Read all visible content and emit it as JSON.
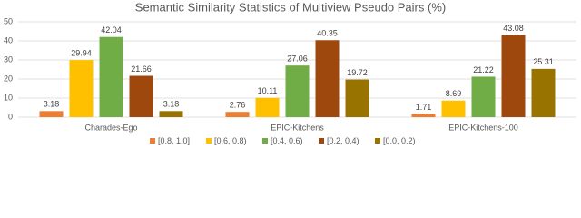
{
  "chart_data": {
    "type": "bar",
    "title": "Semantic Similarity Statistics of Multiview Pseudo Pairs (%)",
    "categories": [
      "Charades-Ego",
      "EPIC-Kitchens",
      "EPIC-Kitchens-100"
    ],
    "series": [
      {
        "name": "[0.8, 1.0]",
        "color": "#ed7d31",
        "values": [
          3.18,
          2.76,
          1.71
        ]
      },
      {
        "name": "[0.6, 0.8)",
        "color": "#ffc000",
        "values": [
          29.94,
          10.11,
          8.69
        ]
      },
      {
        "name": "[0.4, 0.6)",
        "color": "#70ad47",
        "values": [
          42.04,
          27.06,
          21.22
        ]
      },
      {
        "name": "[0.2, 0.4)",
        "color": "#9e480e",
        "values": [
          21.66,
          40.35,
          43.08
        ]
      },
      {
        "name": "[0.0, 0.2)",
        "color": "#997300",
        "values": [
          3.18,
          19.72,
          25.31
        ]
      }
    ],
    "ylim": [
      0,
      50
    ],
    "yticks": [
      0,
      10,
      20,
      30,
      40,
      50
    ],
    "grid": true,
    "legend": "bottom"
  }
}
